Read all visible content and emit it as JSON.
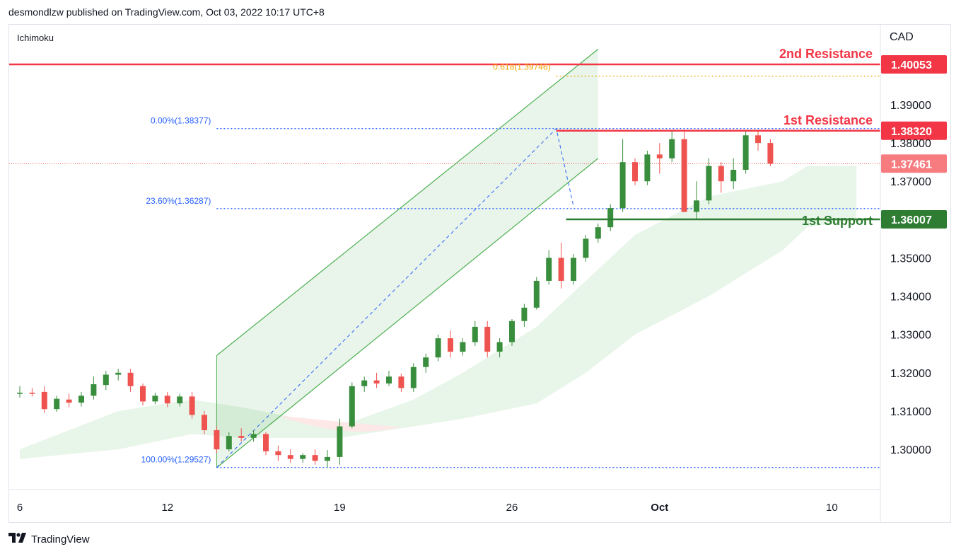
{
  "header": {
    "published": "desmondlzw published on TradingView.com, Oct 03, 2022 10:17 UTC+8"
  },
  "indicator_label": "Ichimoku",
  "footer": {
    "brand": "TradingView",
    "logo_icon": "tradingview-logo-icon"
  },
  "colors": {
    "up": "#388e3c",
    "down": "#ef5350",
    "resistance": "#f23645",
    "support": "#2e7d32",
    "fib": "#2962ff",
    "fib_gold": "#f0a500",
    "channel": "#4caf50",
    "cloud": "#e8f5e9",
    "cloud_red": "#fde7e7"
  },
  "chart_data": {
    "type": "candlestick",
    "symbol_currency": "CAD",
    "ylim": [
      1.2895,
      1.4075
    ],
    "x_ticks": [
      {
        "label": "6",
        "i": 0
      },
      {
        "label": "12",
        "i": 12
      },
      {
        "label": "19",
        "i": 26
      },
      {
        "label": "26",
        "i": 40
      },
      {
        "label": "Oct",
        "i": 52
      },
      {
        "label": "10",
        "i": 66
      }
    ],
    "y_ticks": [
      1.39,
      1.37,
      1.35,
      1.34,
      1.33,
      1.32,
      1.31,
      1.3
    ],
    "price_tags": [
      {
        "value": 1.40053,
        "label": "1.40053",
        "color": "#f23645"
      },
      {
        "value": 1.3832,
        "label": "1.38320",
        "color": "#f23645"
      },
      {
        "value": 1.37461,
        "label": "1.37461",
        "color": "#f77c80"
      },
      {
        "value": 1.36007,
        "label": "1.36007",
        "color": "#2e7d32"
      },
      {
        "value": 1.38,
        "label": "1.38000",
        "color": "none"
      }
    ],
    "levels": [
      {
        "name": "2nd Resistance",
        "value": 1.40053,
        "color": "#f23645",
        "from_i": -2
      },
      {
        "name": "1st Resistance",
        "value": 1.3832,
        "color": "#f23645",
        "from_i": 43.6
      },
      {
        "name": "1st Support",
        "value": 1.36007,
        "color": "#2e7d32",
        "from_i": 44.4
      }
    ],
    "fib": [
      {
        "label": "0.00%(1.38377)",
        "value": 1.38377,
        "from_i": 16
      },
      {
        "label": "23.60%(1.36287)",
        "value": 1.36287,
        "from_i": 16
      },
      {
        "label": "100.00%(1.29527)",
        "value": 1.29527,
        "from_i": 16
      }
    ],
    "fib_ext": {
      "label": "0.618(1.39746)",
      "value": 1.39746,
      "from_i": 43.6
    },
    "candles": [
      [
        1.3145,
        1.3165,
        1.3135,
        1.3148
      ],
      [
        1.3148,
        1.316,
        1.3138,
        1.3145
      ],
      [
        1.315,
        1.3165,
        1.3095,
        1.3105
      ],
      [
        1.3105,
        1.314,
        1.3098,
        1.3132
      ],
      [
        1.313,
        1.3145,
        1.311,
        1.3122
      ],
      [
        1.3122,
        1.315,
        1.3112,
        1.314
      ],
      [
        1.314,
        1.319,
        1.313,
        1.317
      ],
      [
        1.3168,
        1.3205,
        1.3155,
        1.3195
      ],
      [
        1.3195,
        1.321,
        1.318,
        1.32
      ],
      [
        1.32,
        1.321,
        1.315,
        1.3165
      ],
      [
        1.3165,
        1.3172,
        1.3115,
        1.3125
      ],
      [
        1.3125,
        1.3148,
        1.3118,
        1.314
      ],
      [
        1.314,
        1.315,
        1.311,
        1.312
      ],
      [
        1.312,
        1.3145,
        1.3112,
        1.3138
      ],
      [
        1.3138,
        1.315,
        1.308,
        1.309
      ],
      [
        1.309,
        1.31,
        1.304,
        1.305
      ],
      [
        1.305,
        1.306,
        1.299,
        1.3
      ],
      [
        1.3,
        1.3045,
        1.2995,
        1.3035
      ],
      [
        1.3035,
        1.3055,
        1.302,
        1.303
      ],
      [
        1.303,
        1.305,
        1.302,
        1.304
      ],
      [
        1.304,
        1.3045,
        1.2985,
        1.2995
      ],
      [
        1.2995,
        1.301,
        1.297,
        1.2985
      ],
      [
        1.2985,
        1.3,
        1.2965,
        1.2975
      ],
      [
        1.2975,
        1.299,
        1.2965,
        1.2985
      ],
      [
        1.2985,
        1.3,
        1.296,
        1.297
      ],
      [
        1.297,
        1.2998,
        1.2953,
        1.298
      ]
    ],
    "channel_top": [
      [
        16,
        1.3245
      ],
      [
        47,
        1.4045
      ]
    ],
    "channel_bottom": [
      [
        16,
        1.2952
      ],
      [
        47,
        1.376
      ]
    ],
    "cloud_top": [
      [
        0,
        1.3
      ],
      [
        8,
        1.31
      ],
      [
        14,
        1.313
      ],
      [
        18,
        1.311
      ],
      [
        26,
        1.306
      ],
      [
        32,
        1.313
      ],
      [
        36,
        1.32
      ],
      [
        42,
        1.332
      ],
      [
        46,
        1.344
      ],
      [
        50,
        1.356
      ],
      [
        56,
        1.366
      ],
      [
        62,
        1.37
      ],
      [
        64,
        1.374
      ],
      [
        68,
        1.374
      ]
    ],
    "cloud_bottom": [
      [
        0,
        1.2975
      ],
      [
        8,
        1.3
      ],
      [
        14,
        1.304
      ],
      [
        18,
        1.303
      ],
      [
        26,
        1.303
      ],
      [
        32,
        1.306
      ],
      [
        36,
        1.308
      ],
      [
        42,
        1.312
      ],
      [
        46,
        1.32
      ],
      [
        50,
        1.33
      ],
      [
        56,
        1.34
      ],
      [
        62,
        1.352
      ],
      [
        64,
        1.358
      ],
      [
        68,
        1.36
      ]
    ]
  }
}
